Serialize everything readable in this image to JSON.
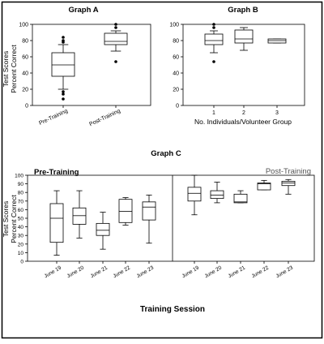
{
  "chart_data": [
    {
      "type": "box",
      "title": "Graph A",
      "ylabel": [
        "Test Scores",
        "Percent Correct"
      ],
      "ylim": [
        0,
        100
      ],
      "yticks": [
        0,
        20,
        40,
        60,
        80,
        100
      ],
      "grid": false,
      "categories": [
        "Pre-Training",
        "Post-Training"
      ],
      "boxes": [
        {
          "whisker_low": 20,
          "q1": 36,
          "median": 50,
          "q3": 65,
          "whisker_high": 75,
          "outliers": [
            84,
            80,
            78,
            17,
            14,
            8
          ]
        },
        {
          "whisker_low": 67,
          "q1": 75,
          "median": 79,
          "q3": 89,
          "whisker_high": 92,
          "outliers": [
            100,
            96,
            54
          ]
        }
      ]
    },
    {
      "type": "box",
      "title": "Graph B",
      "xlabel": "No. Individuals/Volunteer Group",
      "ylim": [
        0,
        100
      ],
      "yticks": [
        0,
        20,
        40,
        60,
        80,
        100
      ],
      "grid": false,
      "categories": [
        "1",
        "2",
        "3"
      ],
      "boxes": [
        {
          "whisker_low": 65,
          "q1": 75,
          "median": 80,
          "q3": 88,
          "whisker_high": 92,
          "outliers": [
            100,
            96,
            54
          ]
        },
        {
          "whisker_low": 68,
          "q1": 77,
          "median": 82,
          "q3": 93,
          "whisker_high": 96,
          "outliers": []
        },
        {
          "whisker_low": 77,
          "q1": 77,
          "median": 80,
          "q3": 82,
          "whisker_high": 82,
          "outliers": []
        }
      ]
    },
    {
      "type": "box",
      "title": "Graph C",
      "xlabel": "Training Session",
      "ylabel": [
        "Test Scores",
        "Percent Correct"
      ],
      "ylim": [
        0,
        100
      ],
      "yticks": [
        0,
        10,
        20,
        30,
        40,
        50,
        60,
        70,
        80,
        90,
        100
      ],
      "grid": false,
      "panels": [
        {
          "label": "Pre-Training",
          "categories": [
            "June 19",
            "June 20",
            "June 21",
            "June 22",
            "June 23"
          ],
          "boxes": [
            {
              "whisker_low": 7,
              "q1": 22,
              "median": 50,
              "q3": 67,
              "whisker_high": 82,
              "outliers": []
            },
            {
              "whisker_low": 27,
              "q1": 43,
              "median": 53,
              "q3": 62,
              "whisker_high": 82,
              "outliers": []
            },
            {
              "whisker_low": 14,
              "q1": 30,
              "median": 36,
              "q3": 44,
              "whisker_high": 57,
              "outliers": []
            },
            {
              "whisker_low": 42,
              "q1": 45,
              "median": 58,
              "q3": 72,
              "whisker_high": 74,
              "outliers": []
            },
            {
              "whisker_low": 21,
              "q1": 48,
              "median": 63,
              "q3": 69,
              "whisker_high": 77,
              "outliers": []
            }
          ]
        },
        {
          "label": "Post-Training",
          "categories": [
            "June 19",
            "June 20",
            "June 21",
            "June 22",
            "June 23"
          ],
          "boxes": [
            {
              "whisker_low": 54,
              "q1": 70,
              "median": 79,
              "q3": 86,
              "whisker_high": 100,
              "outliers": []
            },
            {
              "whisker_low": 68,
              "q1": 73,
              "median": 77,
              "q3": 82,
              "whisker_high": 92,
              "outliers": []
            },
            {
              "whisker_low": 68,
              "q1": 68,
              "median": 69,
              "q3": 78,
              "whisker_high": 82,
              "outliers": []
            },
            {
              "whisker_low": 83,
              "q1": 83,
              "median": 90,
              "q3": 91,
              "whisker_high": 94,
              "outliers": []
            },
            {
              "whisker_low": 78,
              "q1": 88,
              "median": 91,
              "q3": 93,
              "whisker_high": 95,
              "outliers": []
            }
          ]
        }
      ]
    }
  ]
}
